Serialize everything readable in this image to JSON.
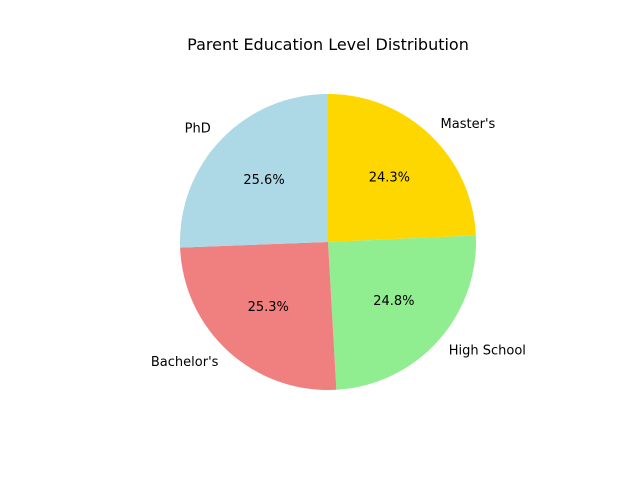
{
  "chart_data": {
    "type": "pie",
    "title": "Parent Education Level Distribution",
    "categories": [
      "Master's",
      "High School",
      "Bachelor's",
      "PhD"
    ],
    "values": [
      24.3,
      24.8,
      25.3,
      25.6
    ],
    "percent_labels": [
      "24.3%",
      "24.8%",
      "25.3%",
      "25.6%"
    ],
    "colors": [
      "#ffd700",
      "#90ee90",
      "#f08080",
      "#add8e6"
    ],
    "start_angle_deg": 90,
    "direction": "clockwise",
    "legend": "none"
  }
}
